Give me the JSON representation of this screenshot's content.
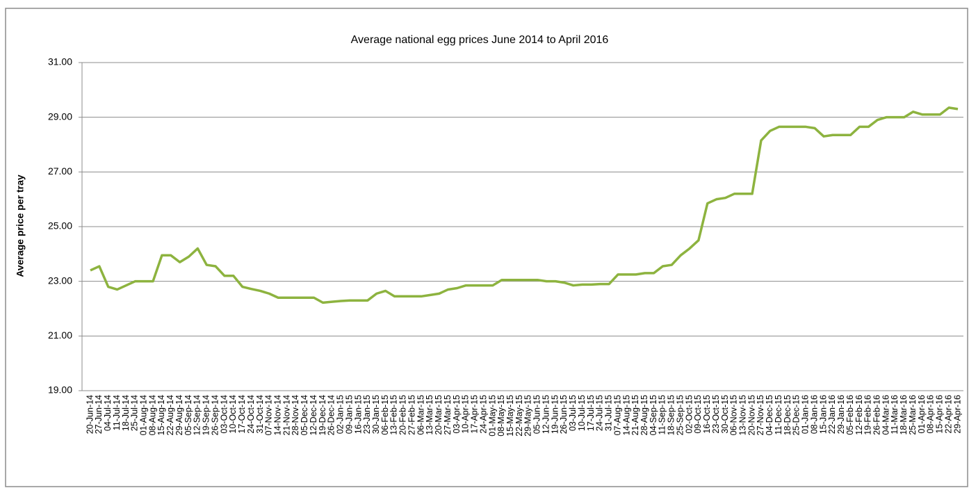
{
  "chart_data": {
    "type": "line",
    "title": "Average national egg prices June 2014 to  April 2016",
    "y_label": "Average price per tray",
    "categories": [
      "20-Jun-14",
      "27-Jun-14",
      "04-Jul-14",
      "11-Jul-14",
      "18-Jul-14",
      "25-Jul-14",
      "01-Aug-14",
      "08-Aug-14",
      "15-Aug-14",
      "22-Aug-14",
      "29-Aug-14",
      "05-Sep-14",
      "12-Sep-14",
      "19-Sep-14",
      "26-Sep-14",
      "03-Oct-14",
      "10-Oct-14",
      "17-Oct-14",
      "24-Oct-14",
      "31-Oct-14",
      "07-Nov-14",
      "14-Nov-14",
      "21-Nov-14",
      "28-Nov-14",
      "05-Dec-14",
      "12-Dec-14",
      "19-Dec-14",
      "26-Dec-14",
      "02-Jan-15",
      "09-Jan-15",
      "16-Jan-15",
      "23-Jan-15",
      "30-Jan-15",
      "06-Feb-15",
      "13-Feb-15",
      "20-Feb-15",
      "27-Feb-15",
      "06-Mar-15",
      "13-Mar-15",
      "20-Mar-15",
      "27-Mar-15",
      "03-Apr-15",
      "10-Apr-15",
      "17-Apr-15",
      "24-Apr-15",
      "01-May-15",
      "08-May-15",
      "15-May-15",
      "22-May-15",
      "29-May-15",
      "05-Jun-15",
      "12-Jun-15",
      "19-Jun-15",
      "26-Jun-15",
      "03-Jul-15",
      "10-Jul-15",
      "17-Jul-15",
      "24-Jul-15",
      "31-Jul-15",
      "07-Aug-15",
      "14-Aug-15",
      "21-Aug-15",
      "28-Aug-15",
      "04-Sep-15",
      "11-Sep-15",
      "18-Sep-15",
      "25-Sep-15",
      "02-Oct-15",
      "09-Oct-15",
      "16-Oct-15",
      "23-Oct-15",
      "30-Oct-15",
      "06-Nov-15",
      "13-Nov-15",
      "20-Nov-15",
      "27-Nov-15",
      "04-Dec-15",
      "11-Dec-15",
      "18-Dec-15",
      "25-Dec-15",
      "01-Jan-16",
      "08-Jan-16",
      "15-Jan-16",
      "22-Jan-16",
      "29-Jan-16",
      "05-Feb-16",
      "12-Feb-16",
      "19-Feb-16",
      "26-Feb-16",
      "04-Mar-16",
      "11-Mar-16",
      "18-Mar-16",
      "25-Mar-16",
      "01-Apr-16",
      "08-Apr-16",
      "15-Apr-16",
      "22-Apr-16",
      "29-Apr-16"
    ],
    "series": [
      {
        "color": "#8db33f",
        "values": [
          23.4,
          23.55,
          22.8,
          22.7,
          22.85,
          23.0,
          23.0,
          23.0,
          23.95,
          23.95,
          23.7,
          23.9,
          24.2,
          23.6,
          23.55,
          23.2,
          23.2,
          22.8,
          22.72,
          22.65,
          22.55,
          22.4,
          22.4,
          22.4,
          22.4,
          22.4,
          22.22,
          22.25,
          22.28,
          22.3,
          22.3,
          22.3,
          22.55,
          22.65,
          22.45,
          22.45,
          22.45,
          22.45,
          22.5,
          22.55,
          22.7,
          22.75,
          22.85,
          22.85,
          22.85,
          22.85,
          23.05,
          23.05,
          23.05,
          23.05,
          23.05,
          23.0,
          23.0,
          22.95,
          22.85,
          22.88,
          22.88,
          22.9,
          22.9,
          23.25,
          23.25,
          23.25,
          23.3,
          23.3,
          23.55,
          23.6,
          23.95,
          24.2,
          24.5,
          25.85,
          26.0,
          26.05,
          26.2,
          26.2,
          26.2,
          28.15,
          28.5,
          28.65,
          28.65,
          28.65,
          28.65,
          28.6,
          28.3,
          28.35,
          28.35,
          28.35,
          28.65,
          28.65,
          28.9,
          29.0,
          29.0,
          29.0,
          29.2,
          29.1,
          29.1,
          29.1,
          29.35,
          29.3
        ]
      }
    ],
    "ylim": [
      19,
      31
    ],
    "yticks": [
      {
        "value": 19,
        "label": "19.00"
      },
      {
        "value": 21,
        "label": "21.00"
      },
      {
        "value": 23,
        "label": "23.00"
      },
      {
        "value": 25,
        "label": "25.00"
      },
      {
        "value": 27,
        "label": "27.00"
      },
      {
        "value": 29,
        "label": "29.00"
      },
      {
        "value": 31,
        "label": "31.00"
      }
    ],
    "grid": true
  }
}
